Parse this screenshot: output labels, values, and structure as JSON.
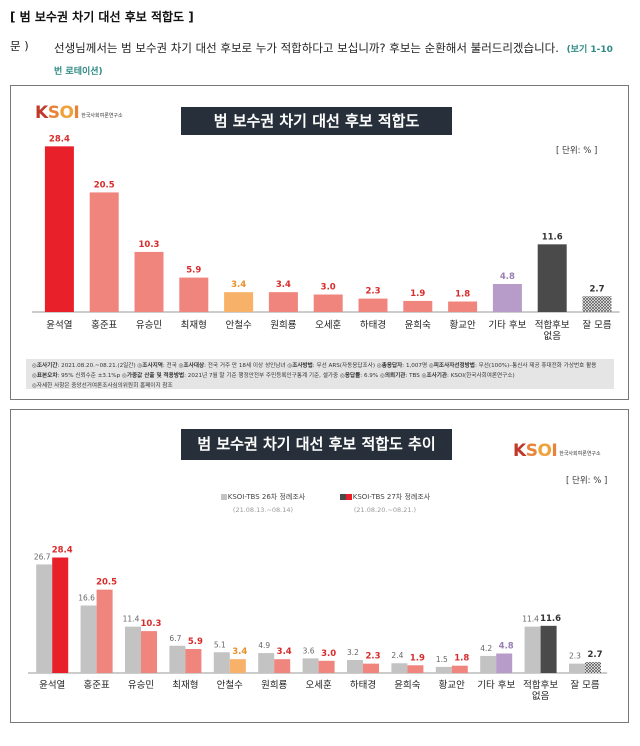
{
  "heading": "[ 범 보수권 차기 대선 후보 적합도 ]",
  "question": {
    "label": "문 )",
    "text": "선생님께서는 범 보수권 차기 대선 후보로 누가 적합하다고 보십니까? 후보는 순환해서 불러드리겠습니다.",
    "note": "(보기 1-10번 로테이션)"
  },
  "logo": {
    "brand": "KSOI",
    "subtitle": "한국사회여론연구소"
  },
  "colors": {
    "red": "#e8202a",
    "salmon": "#f0857d",
    "orange": "#f7b169",
    "purple": "#b79cc9",
    "dark": "#4a4a4a",
    "gray": "#c3c3c3",
    "value_red": "#d92b2b",
    "value_orange": "#e8902a",
    "value_purple": "#9a7fb5",
    "value_dark": "#333333"
  },
  "chart_data": [
    {
      "type": "bar",
      "title": "범 보수권 차기 대선 후보 적합도",
      "unit": "[ 단위: % ]",
      "categories": [
        "윤석열",
        "홍준표",
        "유승민",
        "최재형",
        "안철수",
        "원희룡",
        "오세훈",
        "하태경",
        "윤희숙",
        "황교안",
        "기타 후보",
        "적합후보 없음",
        "잘 모름"
      ],
      "values": [
        28.4,
        20.5,
        10.3,
        5.9,
        3.4,
        3.4,
        3.0,
        2.3,
        1.9,
        1.8,
        4.8,
        11.6,
        2.7
      ],
      "value_labels": [
        "28.4",
        "20.5",
        "10.3",
        "5.9",
        "3.4",
        "3.4",
        "3.0",
        "2.3",
        "1.9",
        "1.8",
        "4.8",
        "11.6",
        "2.7"
      ],
      "bar_colors": [
        "red",
        "salmon",
        "salmon",
        "salmon",
        "orange",
        "salmon",
        "salmon",
        "salmon",
        "salmon",
        "salmon",
        "purple",
        "dark",
        "hatched"
      ],
      "label_colors": [
        "value_red",
        "value_red",
        "value_red",
        "value_red",
        "value_orange",
        "value_red",
        "value_red",
        "value_red",
        "value_red",
        "value_red",
        "value_purple",
        "value_dark",
        "value_dark"
      ],
      "ylim": [
        0,
        30
      ]
    },
    {
      "type": "bar",
      "title": "범 보수권 차기 대선 후보 적합도 추이",
      "unit": "[ 단위: % ]",
      "categories": [
        "윤석열",
        "홍준표",
        "유승민",
        "최재형",
        "안철수",
        "원희룡",
        "오세훈",
        "하태경",
        "윤희숙",
        "황교안",
        "기타 후보",
        "적합후보 없음",
        "잘 모름"
      ],
      "series": [
        {
          "name": "KSOI-TBS 26차 정례조사",
          "period": "(21.08.13.~08.14)",
          "values": [
            26.7,
            16.6,
            11.4,
            6.7,
            5.1,
            4.9,
            3.6,
            3.2,
            2.4,
            1.5,
            4.2,
            11.4,
            2.3
          ],
          "value_labels": [
            "26.7",
            "16.6",
            "11.4",
            "6.7",
            "5.1",
            "4.9",
            "3.6",
            "3.2",
            "2.4",
            "1.5",
            "4.2",
            "11.4",
            "2.3"
          ]
        },
        {
          "name": "KSOI-TBS 27차 정례조사",
          "period": "(21.08.20.~08.21.)",
          "values": [
            28.4,
            20.5,
            10.3,
            5.9,
            3.4,
            3.4,
            3.0,
            2.3,
            1.9,
            1.8,
            4.8,
            11.6,
            2.7
          ],
          "value_labels": [
            "28.4",
            "20.5",
            "10.3",
            "5.9",
            "3.4",
            "3.4",
            "3.0",
            "2.3",
            "1.9",
            "1.8",
            "4.8",
            "11.6",
            "2.7"
          ]
        }
      ],
      "ylim": [
        0,
        30
      ]
    }
  ],
  "footnote": [
    {
      "label": "◎조사기간",
      "value": ": 2021.08.20.~08.21.(2일간)"
    },
    {
      "label": "◎조사지역",
      "value": ": 전국"
    },
    {
      "label": "◎조사대상",
      "value": ": 전국 거주 만 18세 이상 성인남녀"
    },
    {
      "label": "◎조사방법",
      "value": ": 무선 ARS(자동응답조사)"
    },
    {
      "label": "◎총응답자",
      "value": ": 1,007명"
    },
    {
      "label": "◎피조사자선정방법",
      "value": ": 무선(100%)–통신사 제공 휴대전화 가상번호 활용"
    },
    {
      "label": "◎표본오차",
      "value": ": 95% 신뢰수준 ±3.1%p"
    },
    {
      "label": "◎가중값 산출 및 적용방법",
      "value": ": 2021년 7월 말 기준 행정안전부 주민등록인구통계 기준, 셀가중"
    },
    {
      "label": "◎응답률",
      "value": ": 6.9%"
    },
    {
      "label": "◎의뢰기관",
      "value": ": TBS"
    },
    {
      "label": "◎조사기관",
      "value": ": KSOI(한국사회여론연구소)"
    },
    {
      "label": "◎",
      "value": "자세한 사항은 중앙선거여론조사심의위원회 홈페이지 참조"
    }
  ]
}
